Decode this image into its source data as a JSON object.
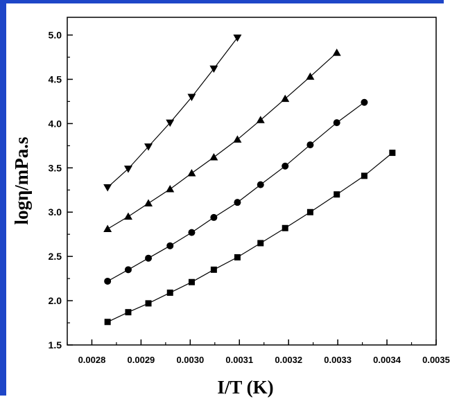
{
  "chart_data": {
    "type": "line",
    "title": "",
    "xlabel": "I/T (K)",
    "ylabel": "logη/mPa.s",
    "xlim": [
      0.00275,
      0.0035
    ],
    "ylim": [
      1.5,
      5.2
    ],
    "x_ticks": [
      0.0028,
      0.0029,
      0.003,
      0.0031,
      0.0032,
      0.0033,
      0.0034,
      0.0035
    ],
    "x_tick_labels": [
      "0.0028",
      "0.0029",
      "0.0030",
      "0.0031",
      "0.0032",
      "0.0033",
      "0.0034",
      "0.0035"
    ],
    "y_ticks": [
      1.5,
      2.0,
      2.5,
      3.0,
      3.5,
      4.0,
      4.5,
      5.0
    ],
    "y_tick_labels": [
      "1.5",
      "2.0",
      "2.5",
      "3.0",
      "3.5",
      "4.0",
      "4.5",
      "5.0"
    ],
    "grid": false,
    "legend": "none",
    "series": [
      {
        "marker": "square",
        "x": [
          0.002832,
          0.002874,
          0.002915,
          0.002959,
          0.003003,
          0.003048,
          0.003096,
          0.003143,
          0.003193,
          0.003244,
          0.003298,
          0.003354,
          0.003411
        ],
        "y": [
          1.76,
          1.87,
          1.97,
          2.09,
          2.21,
          2.35,
          2.49,
          2.65,
          2.82,
          3.0,
          3.2,
          3.41,
          3.67
        ]
      },
      {
        "marker": "circle",
        "x": [
          0.002832,
          0.002874,
          0.002915,
          0.002959,
          0.003003,
          0.003048,
          0.003096,
          0.003143,
          0.003193,
          0.003244,
          0.003298,
          0.003354
        ],
        "y": [
          2.22,
          2.35,
          2.48,
          2.62,
          2.77,
          2.94,
          3.11,
          3.31,
          3.52,
          3.76,
          4.01,
          4.24
        ]
      },
      {
        "marker": "triangle-up",
        "x": [
          0.002832,
          0.002874,
          0.002915,
          0.002959,
          0.003003,
          0.003048,
          0.003096,
          0.003143,
          0.003193,
          0.003244,
          0.003298
        ],
        "y": [
          2.81,
          2.95,
          3.1,
          3.26,
          3.44,
          3.62,
          3.82,
          4.04,
          4.28,
          4.53,
          4.8
        ]
      },
      {
        "marker": "triangle-down",
        "x": [
          0.002832,
          0.002874,
          0.002915,
          0.002959,
          0.003003,
          0.003048,
          0.003096
        ],
        "y": [
          3.28,
          3.49,
          3.74,
          4.01,
          4.3,
          4.62,
          4.97
        ]
      }
    ],
    "colors": {
      "frame": "#1e46c8",
      "ink": "#000000"
    }
  }
}
